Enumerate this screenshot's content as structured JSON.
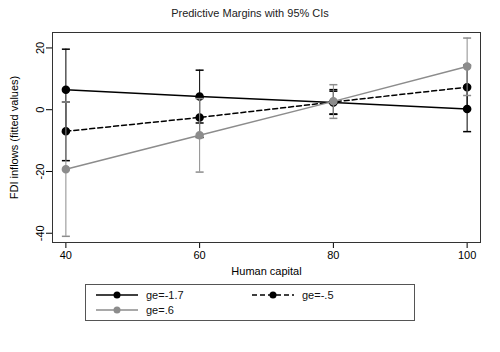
{
  "chart_data": {
    "type": "line",
    "title": "Predictive Margins with 95% CIs",
    "x_label": "Human capital",
    "y_label": "FDI inflows (fitted values)",
    "x": [
      40,
      60,
      80,
      100
    ],
    "xlim": [
      38,
      102
    ],
    "xticks": [
      40,
      60,
      80,
      100
    ],
    "ylim": [
      -43,
      25
    ],
    "yticks": [
      -40,
      -20,
      0,
      20
    ],
    "grid": false,
    "legend": "bottom",
    "series": [
      {
        "name": "ge=-1.7",
        "color": "#000000",
        "line_style": "solid",
        "marker": "circle",
        "values": [
          6.5,
          4.3,
          2.3,
          0.2
        ],
        "ci_low": [
          -7.2,
          -4.3,
          -1.4,
          -7.1
        ],
        "ci_high": [
          19.6,
          12.8,
          6.0,
          7.5
        ]
      },
      {
        "name": "ge=-.5",
        "color": "#000000",
        "line_style": "dashed",
        "marker": "circle",
        "values": [
          -7.0,
          -2.5,
          2.5,
          7.3
        ],
        "ci_low": [
          -16.5,
          -9.0,
          -1.5,
          0.2
        ],
        "ci_high": [
          2.5,
          4.0,
          6.5,
          14.4
        ]
      },
      {
        "name": "ge=.6",
        "color": "#8c8c8c",
        "line_style": "solid",
        "marker": "circle",
        "values": [
          -19.3,
          -8.3,
          2.7,
          14.0
        ],
        "ci_low": [
          -41.0,
          -20.2,
          -2.8,
          4.6
        ],
        "ci_high": [
          2.5,
          3.6,
          8.1,
          23.2
        ]
      }
    ]
  }
}
